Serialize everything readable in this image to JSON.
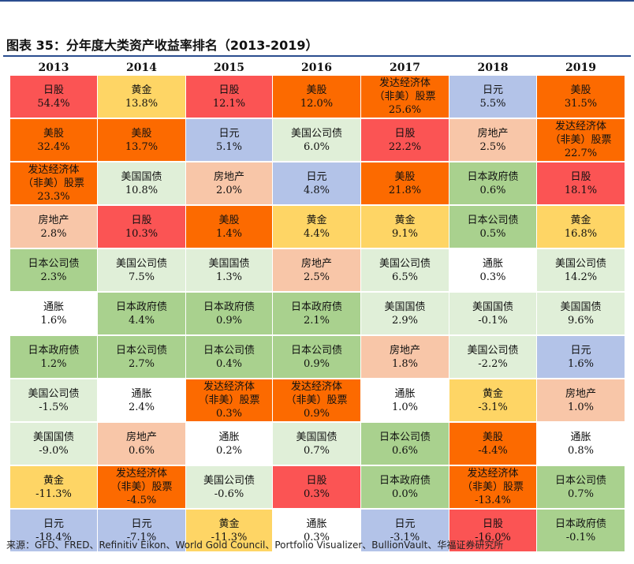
{
  "title": "图表 35：分年度大类资产收益率排名（2013-2019）",
  "source": "来源：GFD、FRED、Refinitiv Eikon、World Gold Council、Portfolio Visualizer、BullionVault、华福证券研究所",
  "asset_colors": {
    "日股": "#fb5454",
    "黄金": "#fed565",
    "美股": "#fc6a00",
    "发达经济体（非美）股票": "#fc6a00",
    "日元": "#b3c3e8",
    "房地产": "#f8c6a8",
    "美国公司债": "#e0efd8",
    "美国国债": "#e0efd8",
    "日本公司债": "#a9d18e",
    "日本政府债": "#a9d18e",
    "通胀": "#ffffff"
  },
  "years": [
    "2013",
    "2014",
    "2015",
    "2016",
    "2017",
    "2018",
    "2019"
  ],
  "columns": [
    [
      {
        "asset": [
          "日股"
        ],
        "value": "54.4%",
        "color": "red"
      },
      {
        "asset": [
          "美股"
        ],
        "value": "32.4%",
        "color": "orange"
      },
      {
        "asset": [
          "发达经济体",
          "（非美）股票"
        ],
        "value": "23.3%",
        "color": "orange"
      },
      {
        "asset": [
          "房地产"
        ],
        "value": "2.8%",
        "color": "peach"
      },
      {
        "asset": [
          "日本公司债"
        ],
        "value": "2.3%",
        "color": "green"
      },
      {
        "asset": [
          "通胀"
        ],
        "value": "1.6%",
        "color": "white"
      },
      {
        "asset": [
          "日本政府债"
        ],
        "value": "1.2%",
        "color": "green"
      },
      {
        "asset": [
          "美国公司债"
        ],
        "value": "-1.5%",
        "color": "pale"
      },
      {
        "asset": [
          "美国国债"
        ],
        "value": "-9.0%",
        "color": "pale"
      },
      {
        "asset": [
          "黄金"
        ],
        "value": "-11.3%",
        "color": "gold"
      },
      {
        "asset": [
          "日元"
        ],
        "value": "-18.4%",
        "color": "blue"
      }
    ],
    [
      {
        "asset": [
          "黄金"
        ],
        "value": "13.8%",
        "color": "gold"
      },
      {
        "asset": [
          "美股"
        ],
        "value": "13.7%",
        "color": "orange"
      },
      {
        "asset": [
          "美国国债"
        ],
        "value": "10.8%",
        "color": "pale"
      },
      {
        "asset": [
          "日股"
        ],
        "value": "10.3%",
        "color": "red"
      },
      {
        "asset": [
          "美国公司债"
        ],
        "value": "7.5%",
        "color": "pale"
      },
      {
        "asset": [
          "日本政府债"
        ],
        "value": "4.4%",
        "color": "green"
      },
      {
        "asset": [
          "日本公司债"
        ],
        "value": "2.7%",
        "color": "green"
      },
      {
        "asset": [
          "通胀"
        ],
        "value": "2.4%",
        "color": "white"
      },
      {
        "asset": [
          "房地产"
        ],
        "value": "0.6%",
        "color": "peach"
      },
      {
        "asset": [
          "发达经济体",
          "（非美）股票"
        ],
        "value": "-4.5%",
        "color": "orange"
      },
      {
        "asset": [
          "日元"
        ],
        "value": "-7.1%",
        "color": "blue"
      }
    ],
    [
      {
        "asset": [
          "日股"
        ],
        "value": "12.1%",
        "color": "red"
      },
      {
        "asset": [
          "日元"
        ],
        "value": "5.1%",
        "color": "blue"
      },
      {
        "asset": [
          "房地产"
        ],
        "value": "2.0%",
        "color": "peach"
      },
      {
        "asset": [
          "美股"
        ],
        "value": "1.4%",
        "color": "orange"
      },
      {
        "asset": [
          "美国国债"
        ],
        "value": "1.3%",
        "color": "pale"
      },
      {
        "asset": [
          "日本政府债"
        ],
        "value": "0.9%",
        "color": "green"
      },
      {
        "asset": [
          "日本公司债"
        ],
        "value": "0.4%",
        "color": "green"
      },
      {
        "asset": [
          "发达经济体",
          "（非美）股票"
        ],
        "value": "0.3%",
        "color": "orange"
      },
      {
        "asset": [
          "通胀"
        ],
        "value": "0.2%",
        "color": "white"
      },
      {
        "asset": [
          "美国公司债"
        ],
        "value": "-0.6%",
        "color": "pale"
      },
      {
        "asset": [
          "黄金"
        ],
        "value": "-11.3%",
        "color": "gold"
      }
    ],
    [
      {
        "asset": [
          "美股"
        ],
        "value": "12.0%",
        "color": "orange"
      },
      {
        "asset": [
          "美国公司债"
        ],
        "value": "6.0%",
        "color": "pale"
      },
      {
        "asset": [
          "日元"
        ],
        "value": "4.8%",
        "color": "blue"
      },
      {
        "asset": [
          "黄金"
        ],
        "value": "4.4%",
        "color": "gold"
      },
      {
        "asset": [
          "房地产"
        ],
        "value": "2.5%",
        "color": "peach"
      },
      {
        "asset": [
          "日本政府债"
        ],
        "value": "2.1%",
        "color": "green"
      },
      {
        "asset": [
          "日本公司债"
        ],
        "value": "0.9%",
        "color": "green"
      },
      {
        "asset": [
          "发达经济体",
          "（非美）股票"
        ],
        "value": "0.9%",
        "color": "orange"
      },
      {
        "asset": [
          "美国国债"
        ],
        "value": "0.7%",
        "color": "pale"
      },
      {
        "asset": [
          "日股"
        ],
        "value": "0.3%",
        "color": "red"
      },
      {
        "asset": [
          "通胀"
        ],
        "value": "0.3%",
        "color": "white"
      }
    ],
    [
      {
        "asset": [
          "发达经济体",
          "（非美）股票"
        ],
        "value": "25.6%",
        "color": "orange"
      },
      {
        "asset": [
          "日股"
        ],
        "value": "22.2%",
        "color": "red"
      },
      {
        "asset": [
          "美股"
        ],
        "value": "21.8%",
        "color": "orange"
      },
      {
        "asset": [
          "黄金"
        ],
        "value": "9.1%",
        "color": "gold"
      },
      {
        "asset": [
          "美国公司债"
        ],
        "value": "6.5%",
        "color": "pale"
      },
      {
        "asset": [
          "美国国债"
        ],
        "value": "2.9%",
        "color": "pale"
      },
      {
        "asset": [
          "房地产"
        ],
        "value": "1.8%",
        "color": "peach"
      },
      {
        "asset": [
          "通胀"
        ],
        "value": "1.0%",
        "color": "white"
      },
      {
        "asset": [
          "日本公司债"
        ],
        "value": "0.6%",
        "color": "green"
      },
      {
        "asset": [
          "日本政府债"
        ],
        "value": "0.0%",
        "color": "green"
      },
      {
        "asset": [
          "日元"
        ],
        "value": "-3.1%",
        "color": "blue"
      }
    ],
    [
      {
        "asset": [
          "日元"
        ],
        "value": "5.5%",
        "color": "blue"
      },
      {
        "asset": [
          "房地产"
        ],
        "value": "2.5%",
        "color": "peach"
      },
      {
        "asset": [
          "日本政府债"
        ],
        "value": "0.6%",
        "color": "green"
      },
      {
        "asset": [
          "日本公司债"
        ],
        "value": "0.5%",
        "color": "green"
      },
      {
        "asset": [
          "通胀"
        ],
        "value": "0.3%",
        "color": "white"
      },
      {
        "asset": [
          "美国国债"
        ],
        "value": "-0.1%",
        "color": "pale"
      },
      {
        "asset": [
          "美国公司债"
        ],
        "value": "-2.2%",
        "color": "pale"
      },
      {
        "asset": [
          "黄金"
        ],
        "value": "-3.1%",
        "color": "gold"
      },
      {
        "asset": [
          "美股"
        ],
        "value": "-4.4%",
        "color": "orange"
      },
      {
        "asset": [
          "发达经济体",
          "（非美）股票"
        ],
        "value": "-13.4%",
        "color": "orange"
      },
      {
        "asset": [
          "日股"
        ],
        "value": "-16.0%",
        "color": "red"
      }
    ],
    [
      {
        "asset": [
          "美股"
        ],
        "value": "31.5%",
        "color": "orange"
      },
      {
        "asset": [
          "发达经济体",
          "（非美）股票"
        ],
        "value": "22.7%",
        "color": "orange"
      },
      {
        "asset": [
          "日股"
        ],
        "value": "18.1%",
        "color": "red"
      },
      {
        "asset": [
          "黄金"
        ],
        "value": "16.8%",
        "color": "gold"
      },
      {
        "asset": [
          "美国公司债"
        ],
        "value": "14.2%",
        "color": "pale"
      },
      {
        "asset": [
          "美国国债"
        ],
        "value": "9.6%",
        "color": "pale"
      },
      {
        "asset": [
          "日元"
        ],
        "value": "1.6%",
        "color": "blue"
      },
      {
        "asset": [
          "房地产"
        ],
        "value": "1.0%",
        "color": "peach"
      },
      {
        "asset": [
          "通胀"
        ],
        "value": "0.8%",
        "color": "white"
      },
      {
        "asset": [
          "日本公司债"
        ],
        "value": "0.7%",
        "color": "green"
      },
      {
        "asset": [
          "日本政府债"
        ],
        "value": "-0.1%",
        "color": "green"
      }
    ]
  ]
}
